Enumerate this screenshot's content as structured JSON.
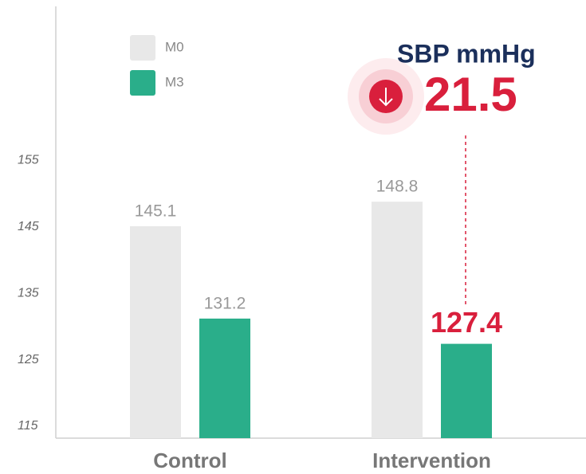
{
  "chart_data": {
    "type": "bar",
    "categories": [
      "Control",
      "Intervention"
    ],
    "series": [
      {
        "name": "M0",
        "color": "#e8e8e8",
        "values": [
          145.1,
          148.8
        ]
      },
      {
        "name": "M3",
        "color": "#2aae8a",
        "values": [
          131.2,
          127.4
        ]
      }
    ],
    "ylim": [
      113.2,
      178.2
    ],
    "yticks": [
      115,
      125,
      135,
      145,
      155
    ],
    "annotation": {
      "label": "SBP mmHg",
      "value": 21.5,
      "color": "#d91f3c"
    }
  }
}
